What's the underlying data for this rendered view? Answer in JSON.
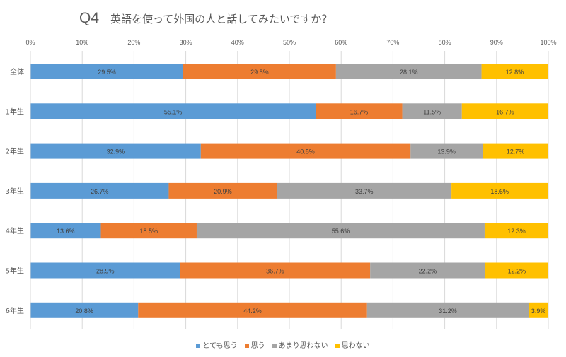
{
  "chart_data": {
    "type": "bar",
    "orientation": "horizontal",
    "stacked": true,
    "title_prefix": "Q4",
    "title": "英語を使って外国の人と話してみたいですか？",
    "categories": [
      "全体",
      "1年生",
      "2年生",
      "3年生",
      "4年生",
      "5年生",
      "6年生"
    ],
    "xlim": [
      0,
      100
    ],
    "x_ticks": [
      "0%",
      "10%",
      "20%",
      "30%",
      "40%",
      "50%",
      "60%",
      "70%",
      "80%",
      "90%",
      "100%"
    ],
    "grid": true,
    "legend_position": "bottom",
    "series": [
      {
        "name": "とても思う",
        "color": "#5B9BD5",
        "values": [
          29.5,
          55.1,
          32.9,
          26.7,
          13.6,
          28.9,
          20.8
        ],
        "labels": [
          "29.5%",
          "55.1%",
          "32.9%",
          "26.7%",
          "13.6%",
          "28.9%",
          "20.8%"
        ]
      },
      {
        "name": "思う",
        "color": "#ED7D31",
        "values": [
          29.5,
          16.7,
          40.5,
          20.9,
          18.5,
          36.7,
          44.2
        ],
        "labels": [
          "29.5%",
          "16.7%",
          "40.5%",
          "20.9%",
          "18.5%",
          "36.7%",
          "44.2%"
        ]
      },
      {
        "name": "あまり思わない",
        "color": "#A5A5A5",
        "values": [
          28.1,
          11.5,
          13.9,
          33.7,
          55.6,
          22.2,
          31.2
        ],
        "labels": [
          "28.1%",
          "11.5%",
          "13.9%",
          "33.7%",
          "55.6%",
          "22.2%",
          "31.2%"
        ]
      },
      {
        "name": "思わない",
        "color": "#FFC000",
        "values": [
          12.8,
          16.7,
          12.7,
          18.6,
          12.3,
          12.2,
          3.9
        ],
        "labels": [
          "12.8%",
          "16.7%",
          "12.7%",
          "18.6%",
          "12.3%",
          "12.2%",
          "3.9%"
        ]
      }
    ]
  }
}
